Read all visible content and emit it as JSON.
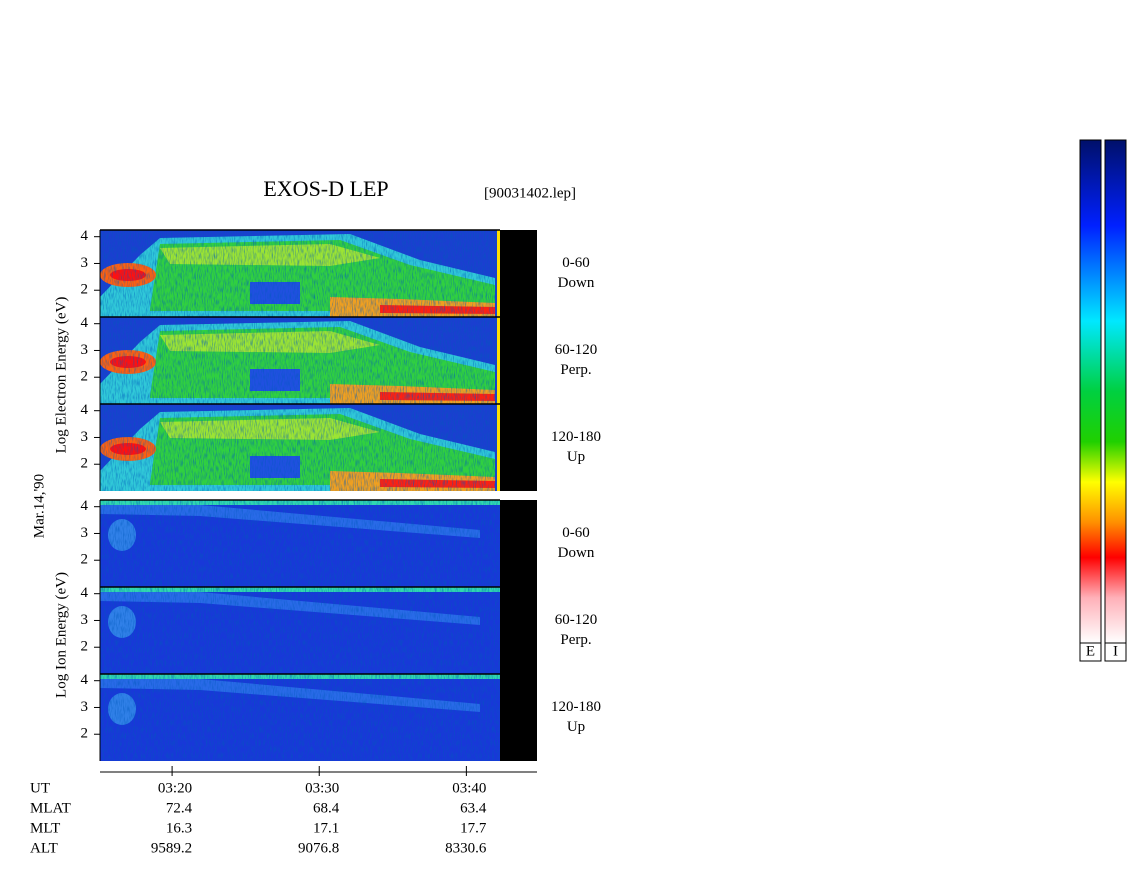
{
  "chart_data": {
    "type": "spectrogram",
    "title": "EXOS-D LEP",
    "file": "[90031402.lep]",
    "date": "Mar.14,'90",
    "groups": [
      {
        "label": "Log Electron Energy (eV)",
        "panels": [
          {
            "angle": "0-60",
            "direction": "Down"
          },
          {
            "angle": "60-120",
            "direction": "Perp."
          },
          {
            "angle": "120-180",
            "direction": "Up"
          }
        ]
      },
      {
        "label": "Log Ion Energy (eV)",
        "panels": [
          {
            "angle": "0-60",
            "direction": "Down"
          },
          {
            "angle": "60-120",
            "direction": "Perp."
          },
          {
            "angle": "120-180",
            "direction": "Up"
          }
        ]
      }
    ],
    "ylim": [
      1,
      4.25
    ],
    "yticks": [
      2,
      3,
      4
    ],
    "xlim": [
      195.1,
      224.8
    ],
    "xticks": [
      {
        "value": 200,
        "label": "03:20"
      },
      {
        "value": 210,
        "label": "03:30"
      },
      {
        "value": 220,
        "label": "03:40"
      }
    ],
    "x_name": "UT",
    "ephemeris": [
      {
        "name": "MLAT",
        "values": [
          72.4,
          68.4,
          63.4
        ]
      },
      {
        "name": "MLT",
        "values": [
          16.3,
          17.1,
          17.7
        ]
      },
      {
        "name": "ALT",
        "values": [
          9589.2,
          9076.8,
          8330.6
        ]
      }
    ],
    "colorbars": [
      "E",
      "I"
    ]
  }
}
